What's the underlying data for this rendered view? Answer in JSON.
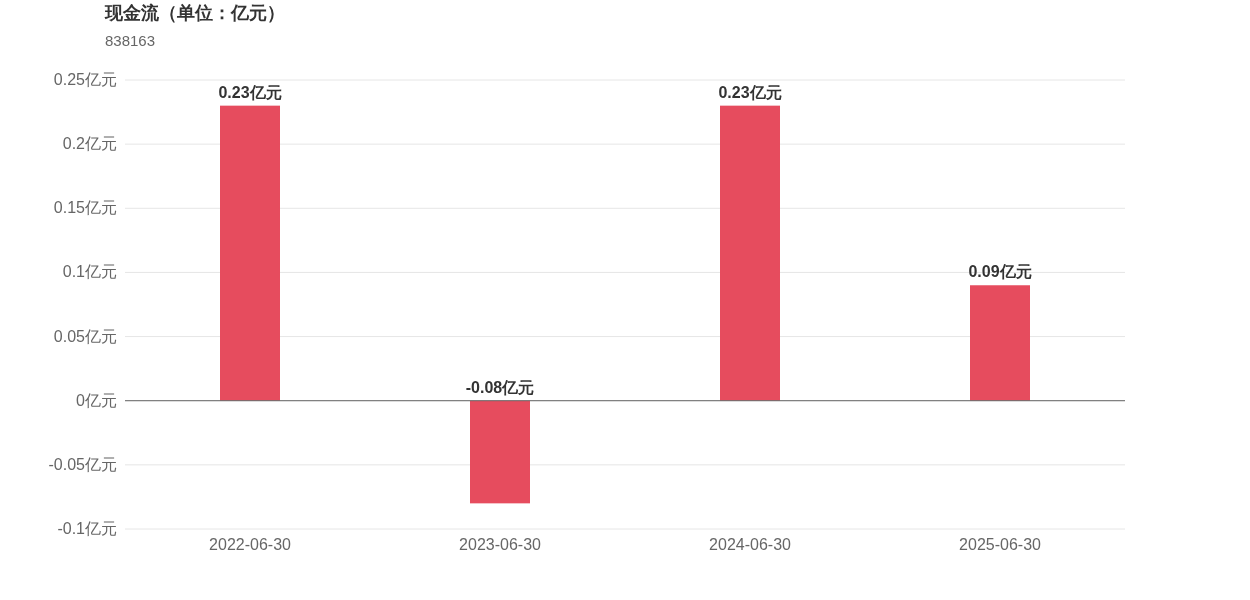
{
  "chart_data": {
    "type": "bar",
    "title": "现金流（单位：亿元）",
    "subtitle": "838163",
    "categories": [
      "2022-06-30",
      "2023-06-30",
      "2024-06-30",
      "2025-06-30"
    ],
    "series": [
      {
        "color": "#e64c5e",
        "values": [
          0.23,
          -0.08,
          0.23,
          0.09
        ],
        "value_labels": [
          "0.23亿元",
          "-0.08亿元",
          "0.23亿元",
          "0.09亿元"
        ]
      }
    ],
    "ylim": [
      -0.1,
      0.25
    ],
    "yticks": [
      {
        "value": -0.1,
        "label": "-0.1亿元"
      },
      {
        "value": -0.05,
        "label": "-0.05亿元"
      },
      {
        "value": 0,
        "label": "0亿元"
      },
      {
        "value": 0.05,
        "label": "0.05亿元"
      },
      {
        "value": 0.1,
        "label": "0.1亿元"
      },
      {
        "value": 0.15,
        "label": "0.15亿元"
      },
      {
        "value": 0.2,
        "label": "0.2亿元"
      },
      {
        "value": 0.25,
        "label": "0.25亿元"
      }
    ],
    "grid": "y"
  }
}
